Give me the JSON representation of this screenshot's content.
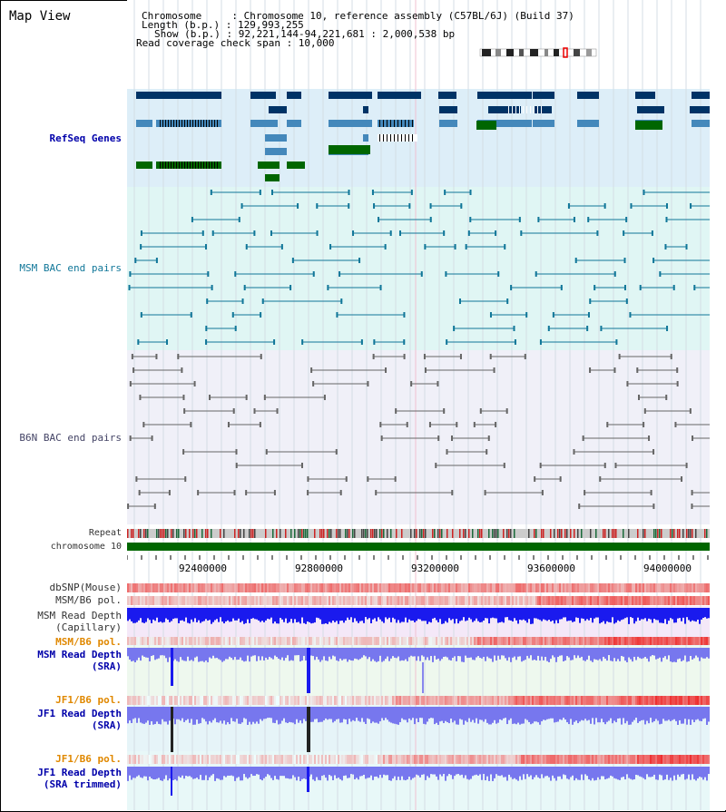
{
  "view_title": "Map View",
  "header": {
    "chromosome_line": "Chromosome     : Chromosome 10, reference assembly (C57BL/6J) (Build 37)",
    "length_line": "Length (b.p.) : 129,993,255",
    "show_line": "Show (b.p.) : 92,221,144-94,221,681 : 2,000,538 bp",
    "coverage_line": "Read coverage check span : 10,000"
  },
  "tracks": {
    "refseq": "RefSeq Genes",
    "msm_bac": "MSM BAC end pairs",
    "b6n_bac": "B6N BAC end pairs",
    "repeat": "Repeat",
    "chromosome": "chromosome 10",
    "dbsnp": "dbSNP(Mouse)",
    "msm_pol": "MSM/B6 pol.",
    "msm_depth_cap_1": "MSM Read Depth",
    "msm_depth_cap_2": "(Capillary)",
    "msm_pol2": "MSM/B6 pol.",
    "msm_depth_sra_1": "MSM Read Depth",
    "msm_depth_sra_2": "(SRA)",
    "jf1_pol": "JF1/B6 pol.",
    "jf1_depth_sra_1": "JF1 Read Depth",
    "jf1_depth_sra_2": "(SRA)",
    "jf1_pol2": "JF1/B6 pol.",
    "jf1_depth_trim_1": "JF1 Read Depth",
    "jf1_depth_trim_2": "(SRA trimmed)"
  },
  "axis_ticks": [
    "92400000",
    "92800000",
    "93200000",
    "93600000",
    "94000000"
  ],
  "colors": {
    "refseq_navy": "#003366",
    "refseq_steel": "#4488bb",
    "refseq_green": "#006600",
    "bac_teal": "#117799",
    "bac_gray": "#666666",
    "depth_blue": "#1a1aee",
    "depth_light": "#7777ee",
    "pol_red": "#ee2222"
  }
}
